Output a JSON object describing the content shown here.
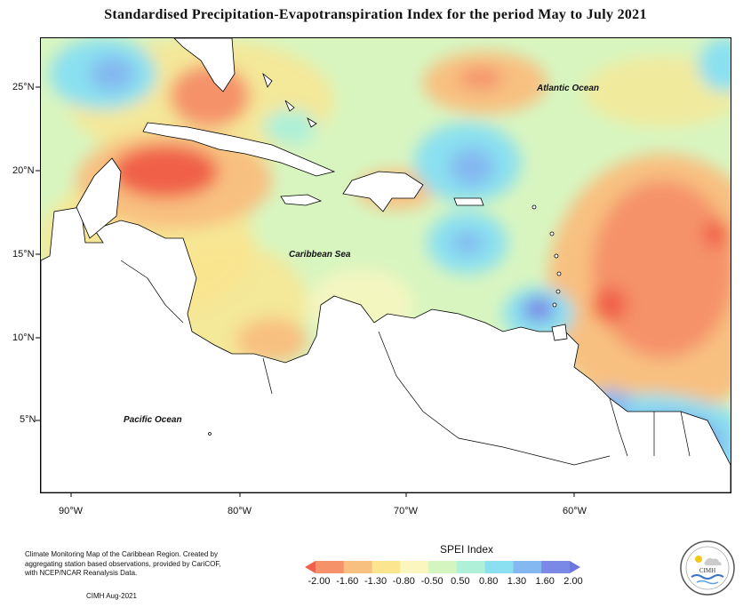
{
  "title": "Standardised Precipitation-Evapotranspiration Index for the period May to July 2021",
  "latitude_labels": [
    "25°N",
    "20°N",
    "15°N",
    "10°N",
    "5°N"
  ],
  "longitude_labels": [
    "90°W",
    "80°W",
    "70°W",
    "60°W"
  ],
  "place_labels": {
    "atlantic": "Atlantic Ocean",
    "caribbean": "Caribbean Sea",
    "pacific": "Pacific Ocean"
  },
  "footer": {
    "description": "Climate Monitoring Map of the Caribbean Region. Created by aggregating station based observations, provided by CariCOF, with NCEP/NCAR Reanalysis Data.",
    "credit": "CIMH Aug-2021"
  },
  "legend": {
    "title": "SPEI Index",
    "ticks": [
      "-2.00",
      "-1.60",
      "-1.30",
      "-0.80",
      "-0.50",
      "0.50",
      "0.80",
      "1.30",
      "1.60",
      "2.00"
    ],
    "colors": [
      "#f0604a",
      "#f5926a",
      "#f8c080",
      "#fbe58e",
      "#fbf6c0",
      "#d5f5c0",
      "#aef0d8",
      "#8ae0f0",
      "#84b8f0",
      "#7a88e6",
      "#6f75e0"
    ]
  },
  "logo": {
    "text": "CIMH"
  }
}
